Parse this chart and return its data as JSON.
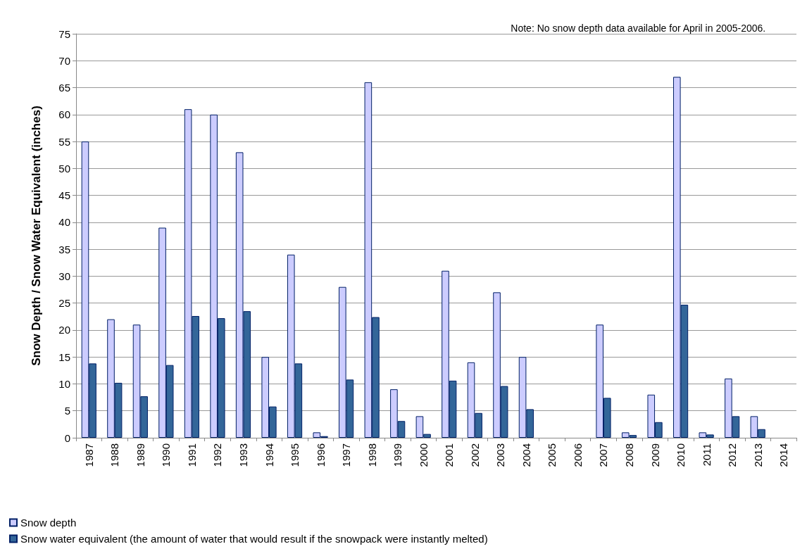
{
  "chart_data": {
    "type": "bar",
    "ylabel": "Snow Depth / Snow Water Equivalent (inches)",
    "categories": [
      "1987",
      "1988",
      "1989",
      "1990",
      "1991",
      "1992",
      "1993",
      "1994",
      "1995",
      "1996",
      "1997",
      "1998",
      "1999",
      "2000",
      "2001",
      "2002",
      "2003",
      "2004",
      "2005",
      "2006",
      "2007",
      "2008",
      "2009",
      "2010",
      "2011",
      "2012",
      "2013",
      "2014"
    ],
    "series": [
      {
        "name": "Snow depth",
        "color": "#ccccff",
        "values": [
          55,
          22,
          21,
          39,
          61,
          60,
          53,
          15,
          34,
          1,
          28,
          66,
          9,
          4,
          31,
          14,
          27,
          15,
          null,
          null,
          21,
          1,
          8,
          67,
          1,
          11,
          4,
          null
        ]
      },
      {
        "name": "Snow water equivalent (the amount of water that would result if the snowpack were instantly melted)",
        "color": "#336699",
        "values": [
          13.8,
          10.2,
          7.7,
          13.5,
          22.6,
          22.2,
          23.5,
          5.8,
          13.8,
          0.3,
          10.8,
          22.4,
          3.1,
          0.7,
          10.6,
          4.6,
          9.6,
          5.3,
          null,
          null,
          7.4,
          0.5,
          2.9,
          24.7,
          0.6,
          4.0,
          1.6,
          null
        ]
      }
    ],
    "ylim": [
      0,
      75
    ],
    "yticks": [
      0,
      5,
      10,
      15,
      20,
      25,
      30,
      35,
      40,
      45,
      50,
      55,
      60,
      65,
      70,
      75
    ],
    "grid": "y",
    "legend": "bottom left",
    "annotations": [
      "Note: No snow depth data available for April in 2005-2006."
    ]
  }
}
